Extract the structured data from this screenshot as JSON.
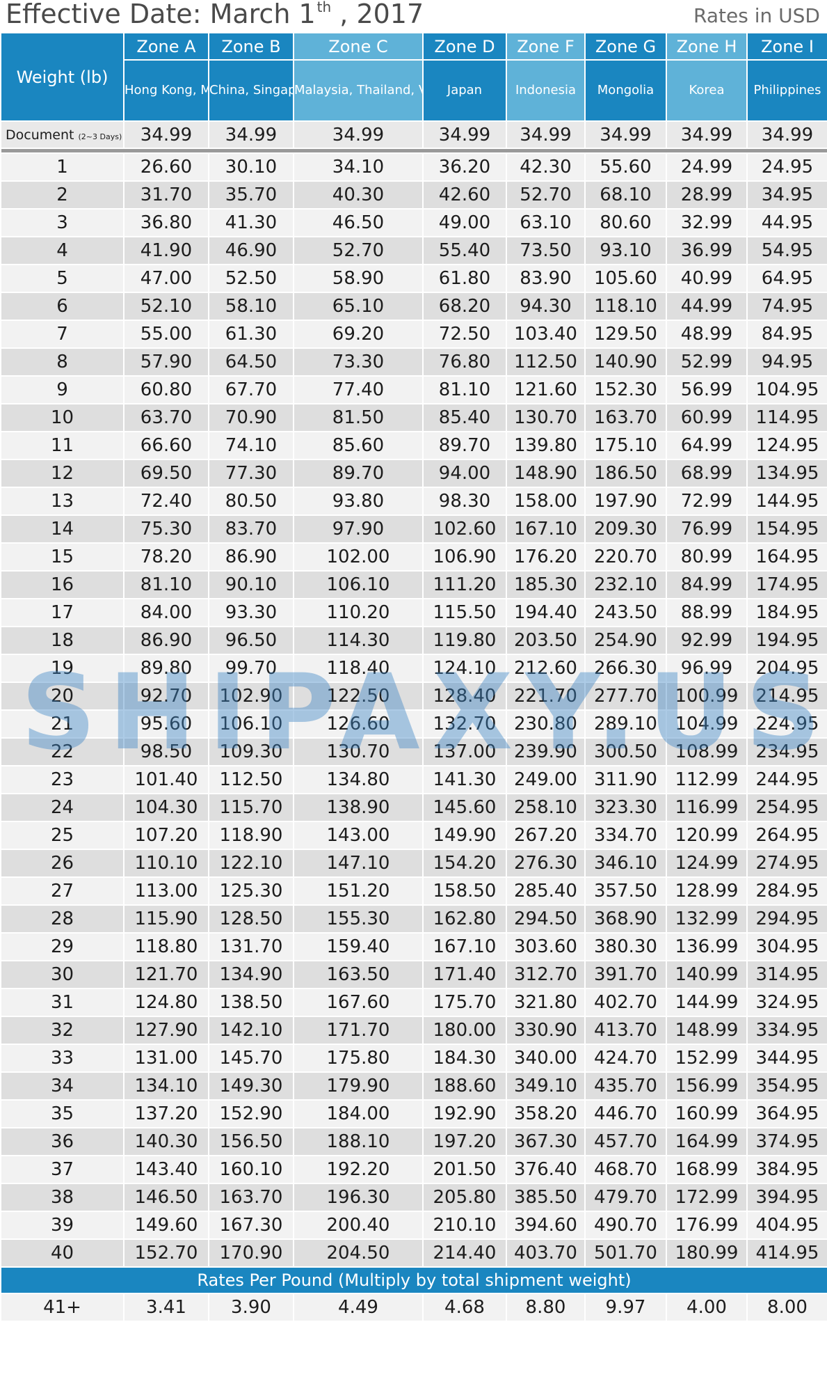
{
  "header": {
    "title_prefix": "Effective Date: March 1",
    "title_sup": "th",
    "title_suffix": " , 2017",
    "currency_note": "Rates in USD"
  },
  "table": {
    "weight_header": "Weight (lb)",
    "zones": [
      {
        "zone": "Zone A",
        "countries": "Hong Kong, Macau, Taiwan"
      },
      {
        "zone": "Zone B",
        "countries": "China, Singapore"
      },
      {
        "zone": "Zone C",
        "countries": "Malaysia, Thailand, Vietnam, Australia, India"
      },
      {
        "zone": "Zone D",
        "countries": "Japan"
      },
      {
        "zone": "Zone F",
        "countries": "Indonesia"
      },
      {
        "zone": "Zone G",
        "countries": "Mongolia"
      },
      {
        "zone": "Zone H",
        "countries": "Korea"
      },
      {
        "zone": "Zone I",
        "countries": "Philippines"
      }
    ],
    "document_row": {
      "label": "Document",
      "sub": "(2~3 Days)",
      "values": [
        "34.99",
        "34.99",
        "34.99",
        "34.99",
        "34.99",
        "34.99",
        "34.99",
        "34.99"
      ]
    },
    "rows": [
      {
        "w": "1",
        "v": [
          "26.60",
          "30.10",
          "34.10",
          "36.20",
          "42.30",
          "55.60",
          "24.99",
          "24.95"
        ]
      },
      {
        "w": "2",
        "v": [
          "31.70",
          "35.70",
          "40.30",
          "42.60",
          "52.70",
          "68.10",
          "28.99",
          "34.95"
        ]
      },
      {
        "w": "3",
        "v": [
          "36.80",
          "41.30",
          "46.50",
          "49.00",
          "63.10",
          "80.60",
          "32.99",
          "44.95"
        ]
      },
      {
        "w": "4",
        "v": [
          "41.90",
          "46.90",
          "52.70",
          "55.40",
          "73.50",
          "93.10",
          "36.99",
          "54.95"
        ]
      },
      {
        "w": "5",
        "v": [
          "47.00",
          "52.50",
          "58.90",
          "61.80",
          "83.90",
          "105.60",
          "40.99",
          "64.95"
        ]
      },
      {
        "w": "6",
        "v": [
          "52.10",
          "58.10",
          "65.10",
          "68.20",
          "94.30",
          "118.10",
          "44.99",
          "74.95"
        ]
      },
      {
        "w": "7",
        "v": [
          "55.00",
          "61.30",
          "69.20",
          "72.50",
          "103.40",
          "129.50",
          "48.99",
          "84.95"
        ]
      },
      {
        "w": "8",
        "v": [
          "57.90",
          "64.50",
          "73.30",
          "76.80",
          "112.50",
          "140.90",
          "52.99",
          "94.95"
        ]
      },
      {
        "w": "9",
        "v": [
          "60.80",
          "67.70",
          "77.40",
          "81.10",
          "121.60",
          "152.30",
          "56.99",
          "104.95"
        ]
      },
      {
        "w": "10",
        "v": [
          "63.70",
          "70.90",
          "81.50",
          "85.40",
          "130.70",
          "163.70",
          "60.99",
          "114.95"
        ]
      },
      {
        "w": "11",
        "v": [
          "66.60",
          "74.10",
          "85.60",
          "89.70",
          "139.80",
          "175.10",
          "64.99",
          "124.95"
        ]
      },
      {
        "w": "12",
        "v": [
          "69.50",
          "77.30",
          "89.70",
          "94.00",
          "148.90",
          "186.50",
          "68.99",
          "134.95"
        ]
      },
      {
        "w": "13",
        "v": [
          "72.40",
          "80.50",
          "93.80",
          "98.30",
          "158.00",
          "197.90",
          "72.99",
          "144.95"
        ]
      },
      {
        "w": "14",
        "v": [
          "75.30",
          "83.70",
          "97.90",
          "102.60",
          "167.10",
          "209.30",
          "76.99",
          "154.95"
        ]
      },
      {
        "w": "15",
        "v": [
          "78.20",
          "86.90",
          "102.00",
          "106.90",
          "176.20",
          "220.70",
          "80.99",
          "164.95"
        ]
      },
      {
        "w": "16",
        "v": [
          "81.10",
          "90.10",
          "106.10",
          "111.20",
          "185.30",
          "232.10",
          "84.99",
          "174.95"
        ]
      },
      {
        "w": "17",
        "v": [
          "84.00",
          "93.30",
          "110.20",
          "115.50",
          "194.40",
          "243.50",
          "88.99",
          "184.95"
        ]
      },
      {
        "w": "18",
        "v": [
          "86.90",
          "96.50",
          "114.30",
          "119.80",
          "203.50",
          "254.90",
          "92.99",
          "194.95"
        ]
      },
      {
        "w": "19",
        "v": [
          "89.80",
          "99.70",
          "118.40",
          "124.10",
          "212.60",
          "266.30",
          "96.99",
          "204.95"
        ]
      },
      {
        "w": "20",
        "v": [
          "92.70",
          "102.90",
          "122.50",
          "128.40",
          "221.70",
          "277.70",
          "100.99",
          "214.95"
        ]
      },
      {
        "w": "21",
        "v": [
          "95.60",
          "106.10",
          "126.60",
          "132.70",
          "230.80",
          "289.10",
          "104.99",
          "224.95"
        ]
      },
      {
        "w": "22",
        "v": [
          "98.50",
          "109.30",
          "130.70",
          "137.00",
          "239.90",
          "300.50",
          "108.99",
          "234.95"
        ]
      },
      {
        "w": "23",
        "v": [
          "101.40",
          "112.50",
          "134.80",
          "141.30",
          "249.00",
          "311.90",
          "112.99",
          "244.95"
        ]
      },
      {
        "w": "24",
        "v": [
          "104.30",
          "115.70",
          "138.90",
          "145.60",
          "258.10",
          "323.30",
          "116.99",
          "254.95"
        ]
      },
      {
        "w": "25",
        "v": [
          "107.20",
          "118.90",
          "143.00",
          "149.90",
          "267.20",
          "334.70",
          "120.99",
          "264.95"
        ]
      },
      {
        "w": "26",
        "v": [
          "110.10",
          "122.10",
          "147.10",
          "154.20",
          "276.30",
          "346.10",
          "124.99",
          "274.95"
        ]
      },
      {
        "w": "27",
        "v": [
          "113.00",
          "125.30",
          "151.20",
          "158.50",
          "285.40",
          "357.50",
          "128.99",
          "284.95"
        ]
      },
      {
        "w": "28",
        "v": [
          "115.90",
          "128.50",
          "155.30",
          "162.80",
          "294.50",
          "368.90",
          "132.99",
          "294.95"
        ]
      },
      {
        "w": "29",
        "v": [
          "118.80",
          "131.70",
          "159.40",
          "167.10",
          "303.60",
          "380.30",
          "136.99",
          "304.95"
        ]
      },
      {
        "w": "30",
        "v": [
          "121.70",
          "134.90",
          "163.50",
          "171.40",
          "312.70",
          "391.70",
          "140.99",
          "314.95"
        ]
      },
      {
        "w": "31",
        "v": [
          "124.80",
          "138.50",
          "167.60",
          "175.70",
          "321.80",
          "402.70",
          "144.99",
          "324.95"
        ]
      },
      {
        "w": "32",
        "v": [
          "127.90",
          "142.10",
          "171.70",
          "180.00",
          "330.90",
          "413.70",
          "148.99",
          "334.95"
        ]
      },
      {
        "w": "33",
        "v": [
          "131.00",
          "145.70",
          "175.80",
          "184.30",
          "340.00",
          "424.70",
          "152.99",
          "344.95"
        ]
      },
      {
        "w": "34",
        "v": [
          "134.10",
          "149.30",
          "179.90",
          "188.60",
          "349.10",
          "435.70",
          "156.99",
          "354.95"
        ]
      },
      {
        "w": "35",
        "v": [
          "137.20",
          "152.90",
          "184.00",
          "192.90",
          "358.20",
          "446.70",
          "160.99",
          "364.95"
        ]
      },
      {
        "w": "36",
        "v": [
          "140.30",
          "156.50",
          "188.10",
          "197.20",
          "367.30",
          "457.70",
          "164.99",
          "374.95"
        ]
      },
      {
        "w": "37",
        "v": [
          "143.40",
          "160.10",
          "192.20",
          "201.50",
          "376.40",
          "468.70",
          "168.99",
          "384.95"
        ]
      },
      {
        "w": "38",
        "v": [
          "146.50",
          "163.70",
          "196.30",
          "205.80",
          "385.50",
          "479.70",
          "172.99",
          "394.95"
        ]
      },
      {
        "w": "39",
        "v": [
          "149.60",
          "167.30",
          "200.40",
          "210.10",
          "394.60",
          "490.70",
          "176.99",
          "404.95"
        ]
      },
      {
        "w": "40",
        "v": [
          "152.70",
          "170.90",
          "204.50",
          "214.40",
          "403.70",
          "501.70",
          "180.99",
          "414.95"
        ]
      }
    ],
    "per_pound_note": "Rates Per Pound (Multiply by total shipment weight)",
    "per_pound_row": {
      "label": "41+",
      "values": [
        "3.41",
        "3.90",
        "4.49",
        "4.68",
        "8.80",
        "9.97",
        "4.00",
        "8.00"
      ]
    }
  },
  "watermark": "SHIPAXY.US",
  "colors": {
    "header_blue": "#1a86c0",
    "header_light_blue": "#5fb2d8",
    "row_light": "#f2f2f2",
    "row_dark": "#dedede"
  }
}
